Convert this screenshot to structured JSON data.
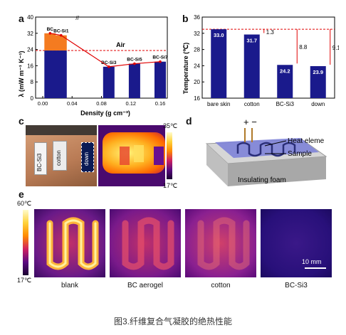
{
  "panel_labels": {
    "a": "a",
    "b": "b",
    "c": "c",
    "d": "d",
    "e": "e"
  },
  "chart_data": [
    {
      "type": "bar",
      "panel": "a",
      "ylabel": "λ (mW m⁻¹ K⁻¹)",
      "xlabel": "Density (g cm⁻³)",
      "ylim": [
        0,
        40
      ],
      "yticks": [
        0,
        8,
        16,
        24,
        32,
        40
      ],
      "xticks": [
        "0.00",
        "0.04",
        "0.08",
        "0.12",
        "0.16"
      ],
      "annotation": "Air",
      "reference_line": {
        "label": "Air",
        "value": 23.5
      },
      "points": [
        {
          "label": "BC",
          "x": 0.01,
          "total": 32.0,
          "lower": 23.5
        },
        {
          "label": "BC-Si1",
          "x": 0.025,
          "total": 31.0,
          "lower": 23.5
        },
        {
          "label": "BC-Si3",
          "x": 0.09,
          "total": 15.5
        },
        {
          "label": "BC-Si5",
          "x": 0.125,
          "total": 17.0
        },
        {
          "label": "BC-Si7",
          "x": 0.16,
          "total": 18.0
        }
      ],
      "colors": {
        "upper": "#f47b20",
        "lower": "#1a1a8c",
        "ref": "#e00000",
        "line": "#e00000"
      }
    },
    {
      "type": "bar",
      "panel": "b",
      "ylabel": "Temperature (℃)",
      "ylim": [
        16,
        36
      ],
      "yticks": [
        16,
        20,
        24,
        28,
        32,
        36
      ],
      "categories": [
        "bare skin",
        "cotton",
        "BC-Si3",
        "down"
      ],
      "values": [
        33.0,
        31.7,
        24.2,
        23.9
      ],
      "value_labels": [
        "33.0",
        "31.7",
        "24.2",
        "23.9"
      ],
      "differences": [
        "1.3",
        "8.8",
        "9.1"
      ],
      "colors": {
        "bar": "#1a1a8c",
        "ref": "#e00000"
      }
    }
  ],
  "panel_c": {
    "sample_labels": [
      "BC-Si3",
      "cotton",
      "down"
    ],
    "scale_max": "35℃",
    "scale_min": "17℃"
  },
  "panel_d": {
    "polarity": "+ −",
    "heat_element": "Heat eleme",
    "sample": "Sample",
    "foam": "Insulating foam"
  },
  "panel_e": {
    "scale_max": "60℃",
    "scale_min": "17℃",
    "scalebar": "10 mm",
    "labels": [
      "blank",
      "BC aerogel",
      "cotton",
      "BC-Si3"
    ]
  },
  "caption": "图3.纤维复合气凝胶的绝热性能"
}
